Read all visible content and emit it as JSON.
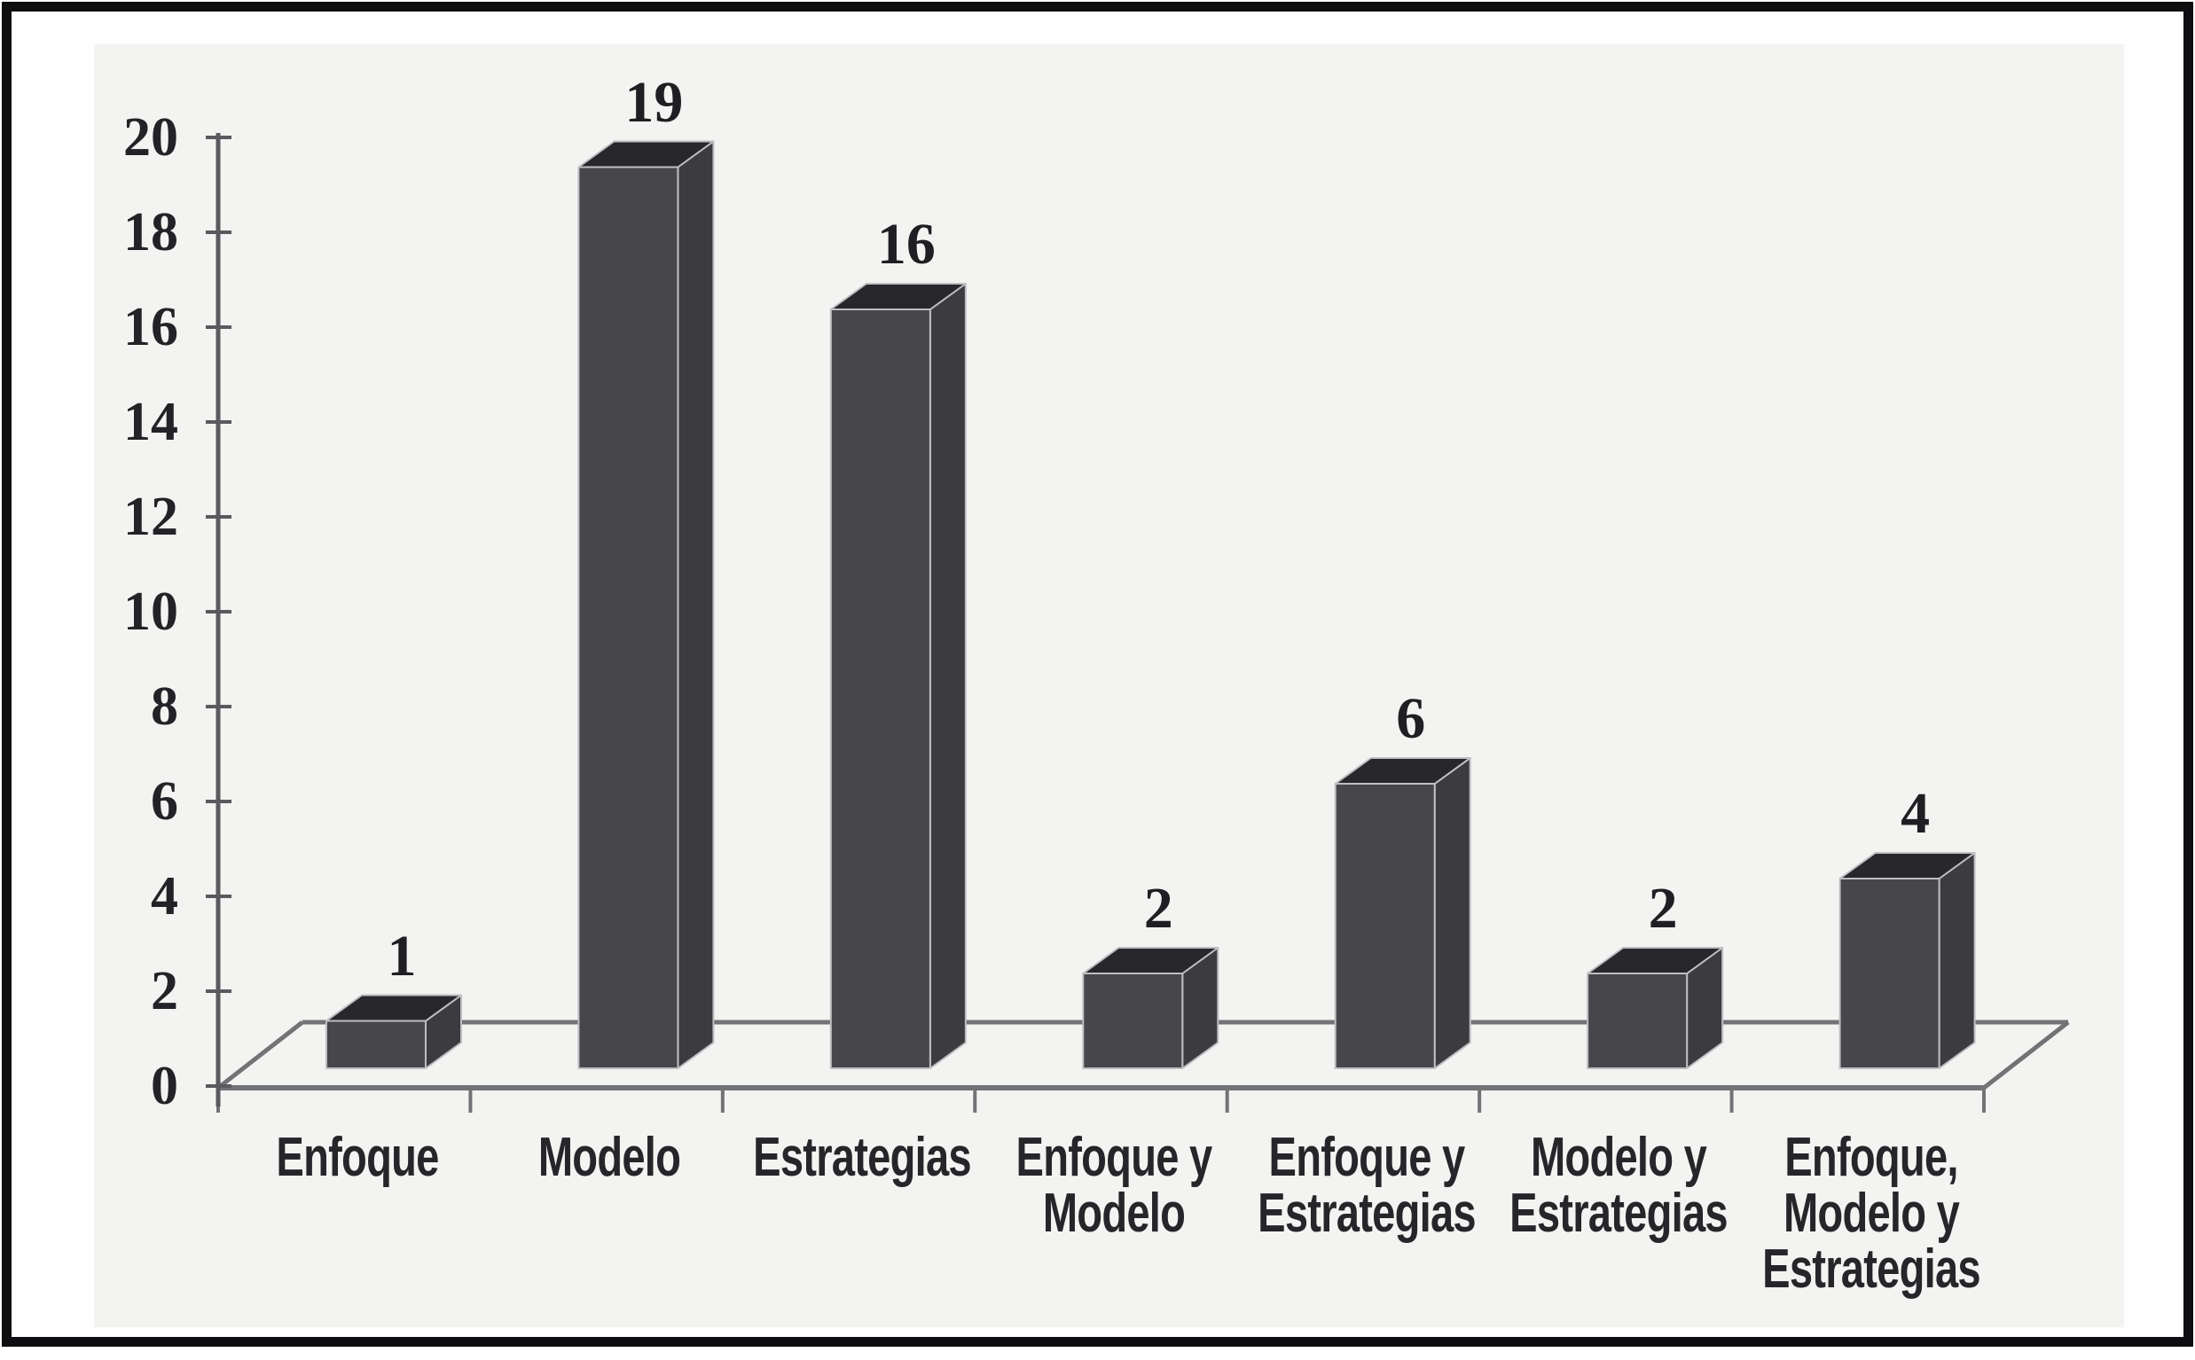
{
  "figure": {
    "kind": "scanned statistical figure",
    "frame_color": "#0e0e10",
    "page_background": "#ffffff",
    "plot_background": "#f3f3f1"
  },
  "chart_data": {
    "type": "bar",
    "style_3d": true,
    "title": "",
    "xlabel": "",
    "ylabel": "",
    "categories": [
      "Enfoque",
      "Modelo",
      "Estrategias",
      "Enfoque y Modelo",
      "Enfoque y Estrategias",
      "Modelo y Estrategias",
      "Enfoque, Modelo y Estrategias"
    ],
    "category_label_lines": [
      [
        "Enfoque"
      ],
      [
        "Modelo"
      ],
      [
        "Estrategias"
      ],
      [
        "Enfoque y",
        "Modelo"
      ],
      [
        "Enfoque y",
        "Estrategias"
      ],
      [
        "Modelo y",
        "Estrategias"
      ],
      [
        "Enfoque,",
        "Modelo y",
        "Estrategias"
      ]
    ],
    "values": [
      1,
      19,
      16,
      2,
      6,
      2,
      4
    ],
    "data_labels": [
      "1",
      "19",
      "16",
      "2",
      "6",
      "2",
      "4"
    ],
    "y_ticks": [
      0,
      2,
      4,
      6,
      8,
      10,
      12,
      14,
      16,
      18,
      20
    ],
    "ylim": [
      0,
      20
    ],
    "grid": false,
    "legend": false,
    "style": {
      "bar_front": "#47474b",
      "bar_top": "#28282c",
      "bar_side": "#3c3c40",
      "bar_outline": "#bfbfc3",
      "axis_color": "#5a5a5e",
      "floor_color": "#737377",
      "text_color": "#232327"
    }
  }
}
